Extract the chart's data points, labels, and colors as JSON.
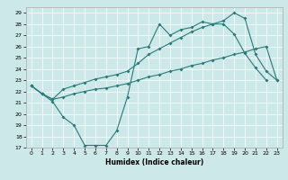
{
  "xlabel": "Humidex (Indice chaleur)",
  "bg_color": "#cce8e8",
  "line_color": "#2a7a7a",
  "grid_color": "#ffffff",
  "xlim": [
    -0.5,
    23.5
  ],
  "ylim": [
    17,
    29.5
  ],
  "yticks": [
    17,
    18,
    19,
    20,
    21,
    22,
    23,
    24,
    25,
    26,
    27,
    28,
    29
  ],
  "xticks": [
    0,
    1,
    2,
    3,
    4,
    5,
    6,
    7,
    8,
    9,
    10,
    11,
    12,
    13,
    14,
    15,
    16,
    17,
    18,
    19,
    20,
    21,
    22,
    23
  ],
  "line1_x": [
    0,
    1,
    2,
    3,
    4,
    5,
    6,
    7,
    8,
    9,
    10,
    11,
    12,
    13,
    14,
    15,
    16,
    17,
    18,
    19,
    20,
    21,
    22
  ],
  "line1_y": [
    22.5,
    21.8,
    21.1,
    19.7,
    19.0,
    17.2,
    17.2,
    17.2,
    18.5,
    21.5,
    25.8,
    26.0,
    28.0,
    27.0,
    27.5,
    27.7,
    28.2,
    28.0,
    28.0,
    27.1,
    25.4,
    24.1,
    23.0
  ],
  "line2_x": [
    0,
    1,
    2,
    3,
    4,
    5,
    6,
    7,
    8,
    9,
    10,
    11,
    12,
    13,
    14,
    15,
    16,
    17,
    18,
    19,
    20,
    21,
    22,
    23
  ],
  "line2_y": [
    22.5,
    21.8,
    21.3,
    22.2,
    22.5,
    22.8,
    23.1,
    23.3,
    23.5,
    23.8,
    24.5,
    25.3,
    25.8,
    26.3,
    26.8,
    27.3,
    27.7,
    28.0,
    28.3,
    29.0,
    28.5,
    25.3,
    23.8,
    23.0
  ],
  "line3_x": [
    0,
    1,
    2,
    3,
    4,
    5,
    6,
    7,
    8,
    9,
    10,
    11,
    12,
    13,
    14,
    15,
    16,
    17,
    18,
    19,
    20,
    21,
    22,
    23
  ],
  "line3_y": [
    22.5,
    21.8,
    21.3,
    21.5,
    21.8,
    22.0,
    22.2,
    22.3,
    22.5,
    22.7,
    23.0,
    23.3,
    23.5,
    23.8,
    24.0,
    24.3,
    24.5,
    24.8,
    25.0,
    25.3,
    25.5,
    25.8,
    26.0,
    23.0
  ],
  "xlabel_fontsize": 5.5,
  "tick_fontsize": 4.5,
  "linewidth": 0.8,
  "markersize": 2.0
}
